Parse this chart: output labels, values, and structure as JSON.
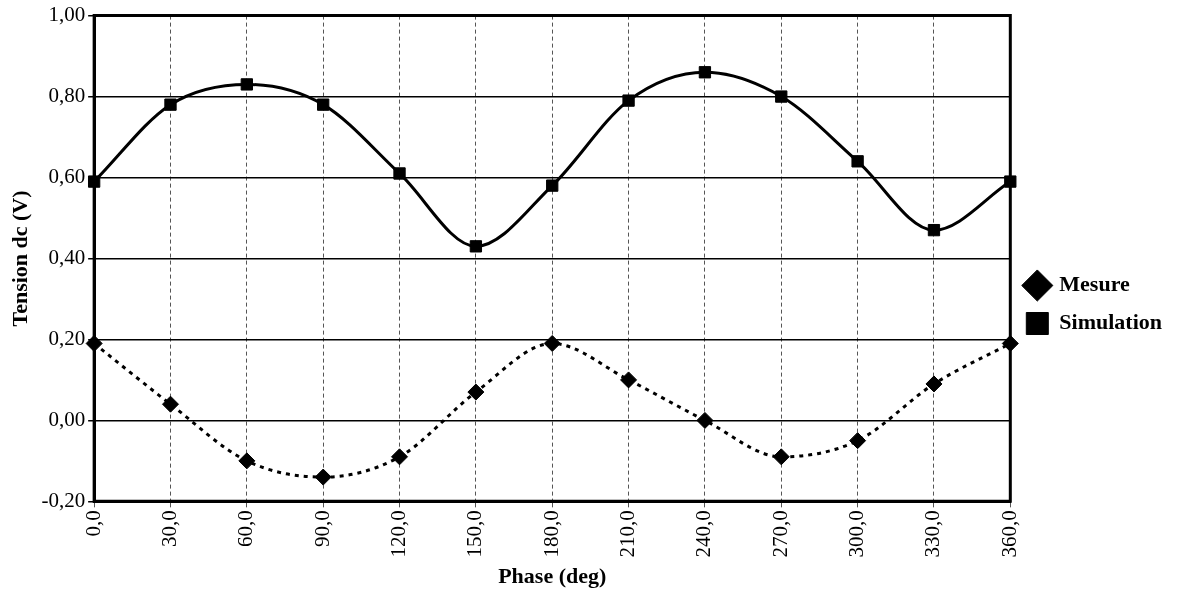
{
  "chart_data": {
    "type": "line",
    "xlabel": "Phase (deg)",
    "ylabel": "Tension dc (V)",
    "categories": [
      "0,0",
      "30,0",
      "60,0",
      "90,0",
      "120,0",
      "150,0",
      "180,0",
      "210,0",
      "240,0",
      "270,0",
      "300,0",
      "330,0",
      "360,0"
    ],
    "ylim": [
      -0.2,
      1.0
    ],
    "yticks": [
      {
        "value": -0.2,
        "label": "-0,20"
      },
      {
        "value": 0,
        "label": "0,00"
      },
      {
        "value": 0.2,
        "label": "0,20"
      },
      {
        "value": 0.4,
        "label": "0,40"
      },
      {
        "value": 0.6,
        "label": "0,60"
      },
      {
        "value": 0.8,
        "label": "0,80"
      },
      {
        "value": 1.0,
        "label": "1,00"
      }
    ],
    "grid": true,
    "legend": "right",
    "series": [
      {
        "name": "Mesure",
        "color": "#000000",
        "marker": "diamond",
        "line_style": "dotted",
        "values": [
          0.19,
          0.04,
          -0.1,
          -0.14,
          -0.09,
          0.07,
          0.19,
          0.1,
          0.0,
          -0.09,
          -0.05,
          0.09,
          0.19
        ]
      },
      {
        "name": "Simulation",
        "color": "#000000",
        "marker": "square",
        "line_style": "solid",
        "values": [
          0.59,
          0.78,
          0.83,
          0.78,
          0.61,
          0.43,
          0.58,
          0.79,
          0.86,
          0.8,
          0.64,
          0.47,
          0.59
        ]
      }
    ]
  }
}
